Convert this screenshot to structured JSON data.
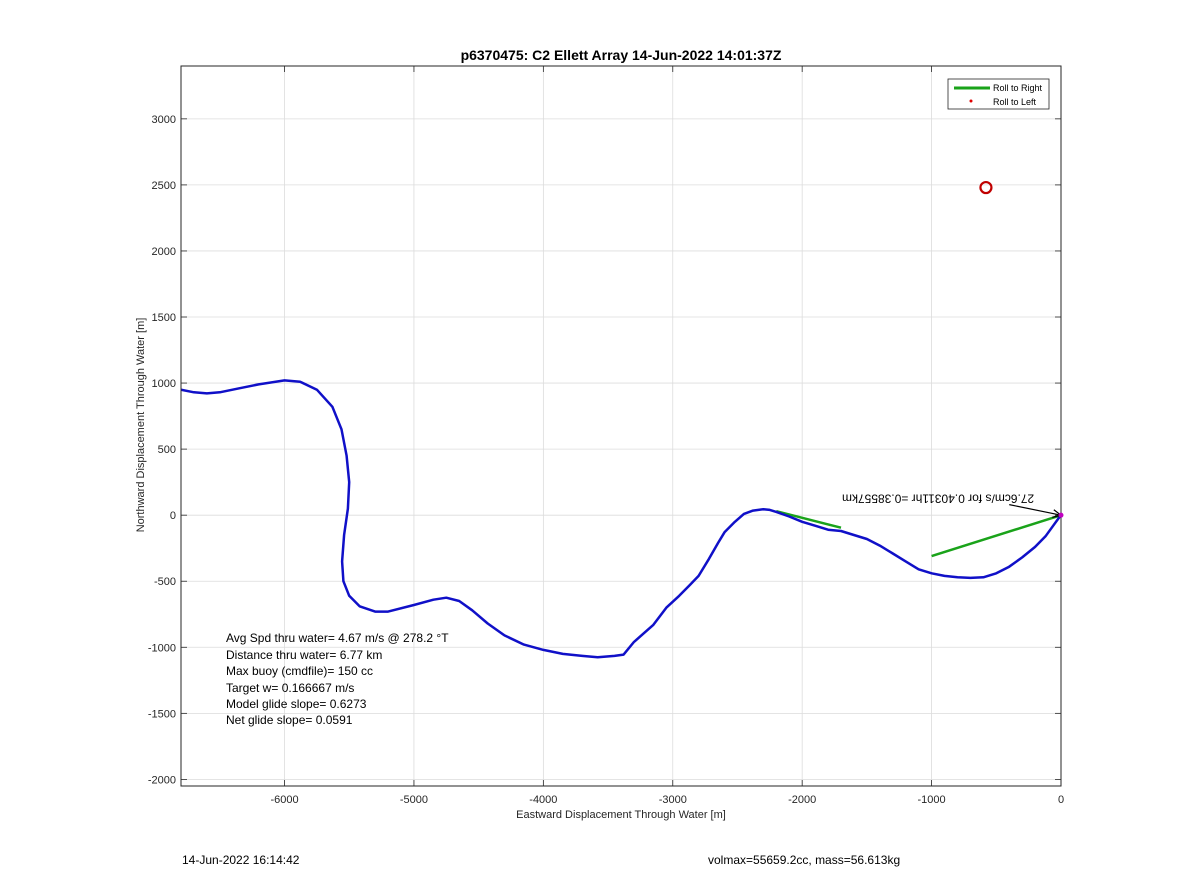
{
  "chart_data": {
    "type": "line",
    "title": "p6370475: C2 Ellett Array 14-Jun-2022 14:01:37Z",
    "xlabel": "Eastward Displacement Through Water [m]",
    "ylabel": "Northward Displacement Through Water [m]",
    "xlim": [
      -6800,
      0
    ],
    "ylim": [
      -2050,
      3400
    ],
    "xticks": [
      -6000,
      -5000,
      -4000,
      -3000,
      -2000,
      -1000,
      0
    ],
    "yticks": [
      -2000,
      -1500,
      -1000,
      -500,
      0,
      500,
      1000,
      1500,
      2000,
      2500,
      3000
    ],
    "grid": true,
    "legend": {
      "placement": "top-right",
      "entries": [
        "Roll to Right",
        "Roll to Left"
      ]
    },
    "series": [
      {
        "name": "Roll to Right",
        "color": "#1aa31a",
        "segments": [
          [
            [
              -2200,
              30
            ],
            [
              -2000,
              -20
            ],
            [
              -1800,
              -70
            ],
            [
              -1700,
              -95
            ]
          ],
          [
            [
              -1000,
              -310
            ],
            [
              0,
              0
            ]
          ]
        ]
      },
      {
        "name": "Roll to Left",
        "color": "#e00000",
        "marker": "dot",
        "x": [],
        "y": []
      },
      {
        "color": "#1010c8",
        "x": [
          -6800,
          -6700,
          -6600,
          -6500,
          -6350,
          -6200,
          -6000,
          -5880,
          -5750,
          -5630,
          -5560,
          -5520,
          -5500,
          -5510,
          -5540,
          -5555,
          -5545,
          -5500,
          -5420,
          -5300,
          -5200,
          -5000,
          -4850,
          -4750,
          -4650,
          -4550,
          -4430,
          -4300,
          -4150,
          -4000,
          -3850,
          -3700,
          -3580,
          -3450,
          -3380,
          -3300,
          -3150,
          -3050,
          -2950,
          -2870,
          -2800,
          -2720,
          -2650,
          -2600,
          -2520,
          -2450,
          -2380,
          -2300,
          -2250,
          -2200,
          -2100,
          -2000,
          -1900,
          -1800,
          -1700,
          -1600,
          -1500,
          -1400,
          -1300,
          -1200,
          -1100,
          -1000,
          -900,
          -800,
          -700,
          -600,
          -500,
          -400,
          -300,
          -200,
          -120,
          -60,
          -20,
          0
        ],
        "y": [
          950,
          930,
          922,
          930,
          960,
          990,
          1020,
          1010,
          950,
          820,
          650,
          450,
          250,
          50,
          -150,
          -350,
          -500,
          -610,
          -690,
          -730,
          -730,
          -680,
          -640,
          -625,
          -650,
          -720,
          -820,
          -910,
          -980,
          -1020,
          -1050,
          -1065,
          -1075,
          -1065,
          -1055,
          -960,
          -830,
          -700,
          -610,
          -530,
          -460,
          -330,
          -210,
          -130,
          -50,
          10,
          35,
          45,
          40,
          25,
          -10,
          -50,
          -80,
          -110,
          -120,
          -150,
          -180,
          -230,
          -290,
          -350,
          -410,
          -440,
          -460,
          -470,
          -475,
          -470,
          -440,
          -390,
          -320,
          -240,
          -160,
          -80,
          -25,
          0
        ]
      }
    ],
    "annotations": {
      "target": {
        "x": -580,
        "y": 2480,
        "color": "#c00000"
      },
      "current_label": "27.6cm/s for 0.40311hr =0.38557km",
      "current_arrow": {
        "x_from": -400,
        "y_from": 80,
        "x_to": 0,
        "y_to": 0
      },
      "stats": [
        "Avg Spd thru water=  4.67 m/s @ 278.2 °T",
        "Distance thru water=  6.77 km",
        "Max buoy (cmdfile)= 150 cc",
        "Target w= 0.166667 m/s",
        "Model glide slope= 0.6273",
        "Net glide slope= 0.0591"
      ]
    }
  },
  "footer": {
    "left": "14-Jun-2022 16:14:42",
    "right": "volmax=55659.2cc, mass=56.613kg"
  }
}
